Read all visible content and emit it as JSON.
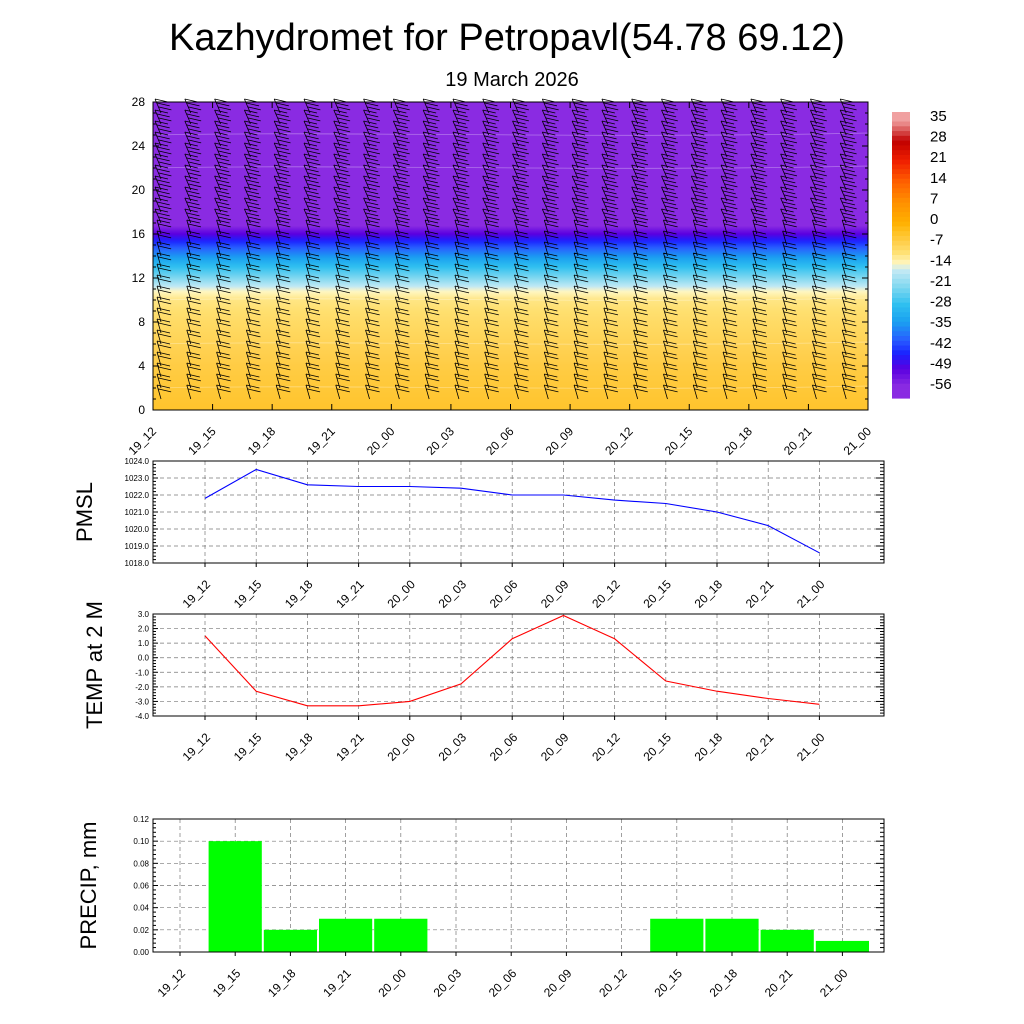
{
  "title": "Kazhydromet for Petropavl(54.78 69.12)",
  "subtitle": "19 March 2026",
  "time_labels": [
    "19_12",
    "19_15",
    "19_18",
    "19_21",
    "20_00",
    "20_03",
    "20_06",
    "20_09",
    "20_12",
    "20_15",
    "20_18",
    "20_21",
    "21_00"
  ],
  "chart_data": [
    {
      "type": "heatmap",
      "name": "temperature-cross-section",
      "x_labels": [
        "19_12",
        "19_15",
        "19_18",
        "19_21",
        "20_00",
        "20_03",
        "20_06",
        "20_09",
        "20_12",
        "20_15",
        "20_18",
        "20_21",
        "21_00"
      ],
      "y_ticks": [
        "0",
        "4",
        "8",
        "12",
        "16",
        "20",
        "24",
        "28"
      ],
      "ylim": [
        0,
        28
      ],
      "colorbar_labels": [
        "35",
        "28",
        "21",
        "14",
        "7",
        "0",
        "-7",
        "-14",
        "-21",
        "-28",
        "-35",
        "-42",
        "-49",
        "-56"
      ],
      "colorbar_values": [
        35,
        28,
        21,
        14,
        7,
        0,
        -7,
        -14,
        -21,
        -28,
        -35,
        -42,
        -49,
        -56
      ],
      "profile_levels": [
        0,
        4,
        8,
        10,
        11,
        12,
        13,
        14,
        15,
        16,
        17,
        18,
        20,
        24,
        28
      ],
      "profile_temps": [
        -4,
        -6,
        -9,
        -11,
        -15,
        -22,
        -28,
        -35,
        -42,
        -50,
        -58,
        -56,
        -56,
        -56,
        -57
      ],
      "wind_barbs": true
    },
    {
      "type": "line",
      "name": "pmsl",
      "ylabel": "PMSL",
      "x": [
        "19_12",
        "19_15",
        "19_18",
        "19_21",
        "20_00",
        "20_03",
        "20_06",
        "20_09",
        "20_12",
        "20_15",
        "20_18",
        "20_21",
        "21_00"
      ],
      "values": [
        1021.8,
        1023.5,
        1022.6,
        1022.5,
        1022.5,
        1022.4,
        1022.0,
        1022.0,
        1021.7,
        1021.5,
        1021.0,
        1020.2,
        1018.6
      ],
      "ylim": [
        1018.0,
        1024.0
      ],
      "y_ticks": [
        "1018.0",
        "1019.0",
        "1020.0",
        "1021.0",
        "1022.0",
        "1023.0",
        "1024.0"
      ],
      "color": "#0000ff"
    },
    {
      "type": "line",
      "name": "temp-2m",
      "ylabel": "TEMP at 2 M",
      "x": [
        "19_12",
        "19_15",
        "19_18",
        "19_21",
        "20_00",
        "20_03",
        "20_06",
        "20_09",
        "20_12",
        "20_15",
        "20_18",
        "20_21",
        "21_00"
      ],
      "values": [
        1.5,
        -2.3,
        -3.3,
        -3.3,
        -3.0,
        -1.8,
        1.3,
        2.9,
        1.3,
        -1.6,
        -2.3,
        -2.8,
        -3.2
      ],
      "ylim": [
        -4.0,
        3.0
      ],
      "y_ticks": [
        "-4.0",
        "-3.0",
        "-2.0",
        "-1.0",
        "0.0",
        "1.0",
        "2.0",
        "3.0"
      ],
      "color": "#ff0000"
    },
    {
      "type": "bar",
      "name": "precip",
      "ylabel": "PRECIP, mm",
      "x": [
        "19_12",
        "19_15",
        "19_18",
        "19_21",
        "20_00",
        "20_03",
        "20_06",
        "20_09",
        "20_12",
        "20_15",
        "20_18",
        "20_21",
        "21_00"
      ],
      "values": [
        0.0,
        0.1,
        0.02,
        0.03,
        0.03,
        0.0,
        0.0,
        0.0,
        0.0,
        0.03,
        0.03,
        0.02,
        0.01
      ],
      "ylim": [
        0.0,
        0.12
      ],
      "y_ticks": [
        "0.00",
        "0.02",
        "0.04",
        "0.06",
        "0.08",
        "0.10",
        "0.12"
      ],
      "color": "#00ff00"
    }
  ]
}
